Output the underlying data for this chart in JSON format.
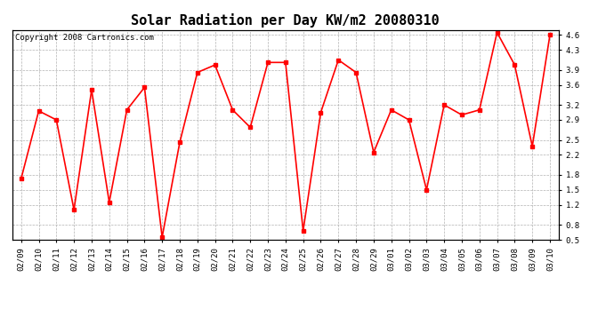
{
  "title": "Solar Radiation per Day KW/m2 20080310",
  "copyright_text": "Copyright 2008 Cartronics.com",
  "dates": [
    "02/09",
    "02/10",
    "02/11",
    "02/12",
    "02/13",
    "02/14",
    "02/15",
    "02/16",
    "02/17",
    "02/18",
    "02/19",
    "02/20",
    "02/21",
    "02/22",
    "02/23",
    "02/24",
    "02/25",
    "02/26",
    "02/27",
    "02/28",
    "02/29",
    "03/01",
    "03/02",
    "03/03",
    "03/04",
    "03/05",
    "03/06",
    "03/07",
    "03/08",
    "03/09",
    "03/10"
  ],
  "values": [
    1.72,
    3.08,
    2.9,
    1.1,
    3.5,
    1.25,
    3.1,
    3.55,
    0.55,
    2.45,
    3.85,
    4.0,
    3.1,
    2.75,
    4.05,
    4.05,
    0.68,
    3.05,
    4.1,
    3.85,
    2.25,
    3.1,
    2.9,
    1.5,
    3.2,
    3.0,
    3.1,
    4.65,
    4.0,
    2.37,
    4.6
  ],
  "line_color": "#ff0000",
  "marker": "s",
  "marker_size": 2.5,
  "bg_color": "#ffffff",
  "plot_bg_color": "#ffffff",
  "grid_color": "#aaaaaa",
  "ylim": [
    0.5,
    4.7
  ],
  "yticks": [
    0.5,
    0.8,
    1.2,
    1.5,
    1.8,
    2.2,
    2.5,
    2.9,
    3.2,
    3.6,
    3.9,
    4.3,
    4.6
  ],
  "title_fontsize": 11,
  "copyright_fontsize": 6.5,
  "tick_fontsize": 6.5,
  "line_width": 1.2
}
